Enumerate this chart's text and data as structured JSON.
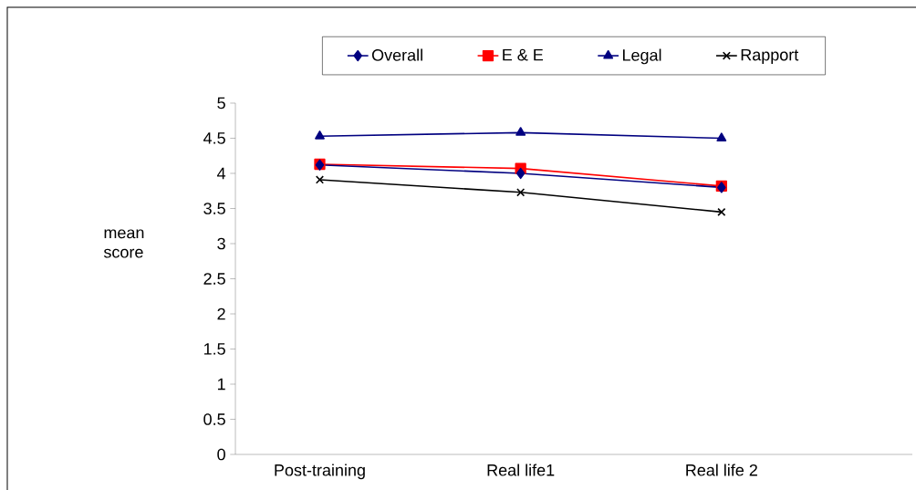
{
  "chart_data": {
    "type": "line",
    "ylabel": "mean score",
    "categories": [
      "Post-training",
      "Real life1",
      "Real life 2"
    ],
    "series": [
      {
        "name": "Overall",
        "color": "#000080",
        "marker": "diamond",
        "values": [
          4.12,
          4.0,
          3.8
        ]
      },
      {
        "name": "E & E",
        "color": "#ff0000",
        "marker": "square",
        "values": [
          4.13,
          4.07,
          3.82
        ]
      },
      {
        "name": "Legal",
        "color": "#000080",
        "marker": "triangle",
        "values": [
          4.53,
          4.58,
          4.5
        ]
      },
      {
        "name": "Rapport",
        "color": "#000000",
        "marker": "cross",
        "values": [
          3.91,
          3.73,
          3.45
        ]
      }
    ],
    "ylim": [
      0,
      5
    ],
    "yticks": [
      0,
      0.5,
      1,
      1.5,
      2,
      2.5,
      3,
      3.5,
      4,
      4.5,
      5
    ],
    "grid": false,
    "legend": "top",
    "line_style": "solid"
  }
}
